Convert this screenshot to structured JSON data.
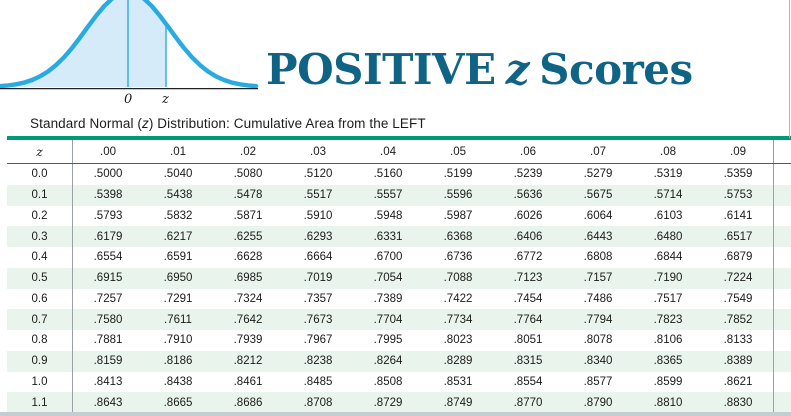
{
  "header": {
    "title": {
      "pre": "POSITIVE",
      "z": "z",
      "post": "Scores"
    },
    "curve_labels": {
      "zero": "0",
      "z": "z"
    }
  },
  "caption": {
    "pre": "Standard Normal (",
    "z": "z",
    "post": ") Distribution: Cumulative Area from the LEFT"
  },
  "table": {
    "columns": [
      "z",
      ".00",
      ".01",
      ".02",
      ".03",
      ".04",
      ".05",
      ".06",
      ".07",
      ".08",
      ".09"
    ],
    "rows": [
      {
        "z": "0.0",
        "values": [
          ".5000",
          ".5040",
          ".5080",
          ".5120",
          ".5160",
          ".5199",
          ".5239",
          ".5279",
          ".5319",
          ".5359"
        ]
      },
      {
        "z": "0.1",
        "values": [
          ".5398",
          ".5438",
          ".5478",
          ".5517",
          ".5557",
          ".5596",
          ".5636",
          ".5675",
          ".5714",
          ".5753"
        ]
      },
      {
        "z": "0.2",
        "values": [
          ".5793",
          ".5832",
          ".5871",
          ".5910",
          ".5948",
          ".5987",
          ".6026",
          ".6064",
          ".6103",
          ".6141"
        ]
      },
      {
        "z": "0.3",
        "values": [
          ".6179",
          ".6217",
          ".6255",
          ".6293",
          ".6331",
          ".6368",
          ".6406",
          ".6443",
          ".6480",
          ".6517"
        ]
      },
      {
        "z": "0.4",
        "values": [
          ".6554",
          ".6591",
          ".6628",
          ".6664",
          ".6700",
          ".6736",
          ".6772",
          ".6808",
          ".6844",
          ".6879"
        ]
      },
      {
        "z": "0.5",
        "values": [
          ".6915",
          ".6950",
          ".6985",
          ".7019",
          ".7054",
          ".7088",
          ".7123",
          ".7157",
          ".7190",
          ".7224"
        ]
      },
      {
        "z": "0.6",
        "values": [
          ".7257",
          ".7291",
          ".7324",
          ".7357",
          ".7389",
          ".7422",
          ".7454",
          ".7486",
          ".7517",
          ".7549"
        ]
      },
      {
        "z": "0.7",
        "values": [
          ".7580",
          ".7611",
          ".7642",
          ".7673",
          ".7704",
          ".7734",
          ".7764",
          ".7794",
          ".7823",
          ".7852"
        ]
      },
      {
        "z": "0.8",
        "values": [
          ".7881",
          ".7910",
          ".7939",
          ".7967",
          ".7995",
          ".8023",
          ".8051",
          ".8078",
          ".8106",
          ".8133"
        ]
      },
      {
        "z": "0.9",
        "values": [
          ".8159",
          ".8186",
          ".8212",
          ".8238",
          ".8264",
          ".8289",
          ".8315",
          ".8340",
          ".8365",
          ".8389"
        ]
      },
      {
        "z": "1.0",
        "values": [
          ".8413",
          ".8438",
          ".8461",
          ".8485",
          ".8508",
          ".8531",
          ".8554",
          ".8577",
          ".8599",
          ".8621"
        ]
      },
      {
        "z": "1.1",
        "values": [
          ".8643",
          ".8665",
          ".8686",
          ".8708",
          ".8729",
          ".8749",
          ".8770",
          ".8790",
          ".8810",
          ".8830"
        ]
      }
    ]
  },
  "colors": {
    "title_teal": "#0F6384",
    "rule_teal": "#009B76",
    "row_alt_green": "#E9F4EC",
    "curve_blue": "#29ABE2",
    "curve_fill": "#D6EBF9"
  }
}
